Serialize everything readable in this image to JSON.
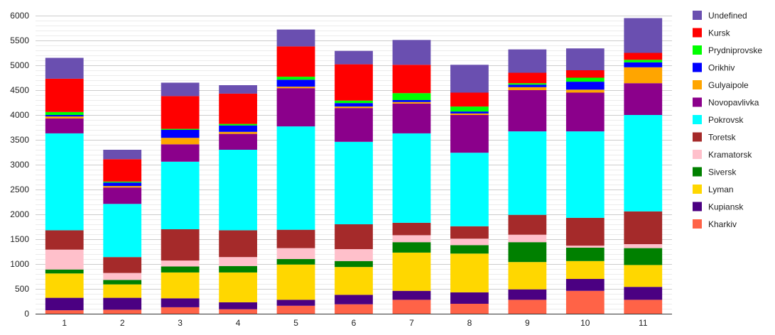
{
  "chart_data": {
    "type": "bar",
    "stacked": true,
    "title": "",
    "xlabel": "",
    "ylabel": "",
    "ylim": [
      0,
      6000
    ],
    "yticks": [
      0,
      500,
      1000,
      1500,
      2000,
      2500,
      3000,
      3500,
      4000,
      4500,
      5000,
      5500,
      6000
    ],
    "categories": [
      "1",
      "2",
      "3",
      "4",
      "5",
      "6",
      "7",
      "8",
      "9",
      "10",
      "11"
    ],
    "legend_position": "right",
    "series": [
      {
        "name": "Kharkiv",
        "color": "#ff6347",
        "values": [
          70,
          80,
          130,
          90,
          160,
          190,
          280,
          200,
          280,
          460,
          280
        ]
      },
      {
        "name": "Kupiansk",
        "color": "#4b0082",
        "values": [
          250,
          240,
          180,
          140,
          120,
          190,
          180,
          230,
          210,
          240,
          260
        ]
      },
      {
        "name": "Lyman",
        "color": "#ffd700",
        "values": [
          490,
          270,
          520,
          600,
          710,
          560,
          770,
          780,
          550,
          360,
          440
        ]
      },
      {
        "name": "Siversk",
        "color": "#008000",
        "values": [
          80,
          90,
          120,
          130,
          110,
          120,
          210,
          170,
          400,
          270,
          340
        ]
      },
      {
        "name": "Kramatorsk",
        "color": "#ffc0cb",
        "values": [
          400,
          140,
          120,
          180,
          220,
          240,
          140,
          130,
          150,
          40,
          80
        ]
      },
      {
        "name": "Toretsk",
        "color": "#a52a2a",
        "values": [
          390,
          320,
          630,
          540,
          370,
          500,
          250,
          250,
          400,
          560,
          660
        ]
      },
      {
        "name": "Pokrovsk",
        "color": "#00ffff",
        "values": [
          1950,
          1070,
          1360,
          1620,
          2080,
          1660,
          1800,
          1480,
          1680,
          1740,
          1940
        ]
      },
      {
        "name": "Novopavlivka",
        "color": "#8b008b",
        "values": [
          300,
          330,
          350,
          320,
          770,
          680,
          600,
          760,
          830,
          780,
          640
        ]
      },
      {
        "name": "Gulyaipole",
        "color": "#ffa500",
        "values": [
          40,
          30,
          130,
          40,
          30,
          30,
          30,
          30,
          60,
          60,
          320
        ]
      },
      {
        "name": "Orikhiv",
        "color": "#0000ff",
        "values": [
          30,
          70,
          160,
          130,
          140,
          70,
          40,
          40,
          50,
          160,
          100
        ]
      },
      {
        "name": "Prydniprovske",
        "color": "#00ff00",
        "values": [
          60,
          20,
          20,
          30,
          60,
          50,
          140,
          100,
          30,
          80,
          50
        ]
      },
      {
        "name": "Kursk",
        "color": "#ff0000",
        "values": [
          670,
          450,
          660,
          610,
          610,
          730,
          570,
          280,
          210,
          150,
          140
        ]
      },
      {
        "name": "Undefined",
        "color": "#6a4fb0",
        "values": [
          420,
          190,
          270,
          170,
          340,
          270,
          500,
          560,
          470,
          440,
          700
        ]
      }
    ]
  }
}
